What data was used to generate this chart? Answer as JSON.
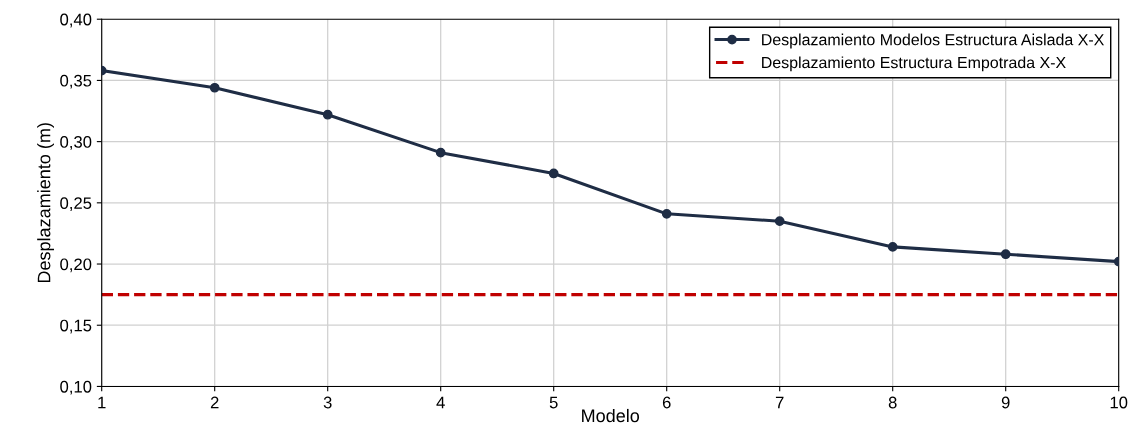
{
  "chart_data": {
    "type": "line",
    "xlabel": "Modelo",
    "ylabel": "Desplazamiento (m)",
    "x": [
      1,
      2,
      3,
      4,
      5,
      6,
      7,
      8,
      9,
      10
    ],
    "series": [
      {
        "name": "Desplazamiento Modelos Estructura Aislada X-X",
        "color": "#1f2d45",
        "values": [
          0.358,
          0.344,
          0.322,
          0.291,
          0.274,
          0.241,
          0.235,
          0.214,
          0.208,
          0.202
        ]
      }
    ],
    "ref_lines": [
      {
        "axis": "y",
        "value": 0.175,
        "label": "Desplazamiento Estructura Empotrada X-X",
        "color": "#c00000",
        "line_style": "dashed"
      }
    ],
    "xlim": [
      1,
      10
    ],
    "xticks": [
      1,
      2,
      3,
      4,
      5,
      6,
      7,
      8,
      9,
      10
    ],
    "ylim": [
      0.1,
      0.4
    ],
    "yticks": [
      {
        "value": 0.1,
        "label": "0,10"
      },
      {
        "value": 0.15,
        "label": "0,15"
      },
      {
        "value": 0.2,
        "label": "0,20"
      },
      {
        "value": 0.25,
        "label": "0,25"
      },
      {
        "value": 0.3,
        "label": "0,30"
      },
      {
        "value": 0.35,
        "label": "0,35"
      },
      {
        "value": 0.4,
        "label": "0,40"
      }
    ],
    "grid": true,
    "legend": "top right",
    "marker": "circle",
    "line_style": "solid"
  }
}
